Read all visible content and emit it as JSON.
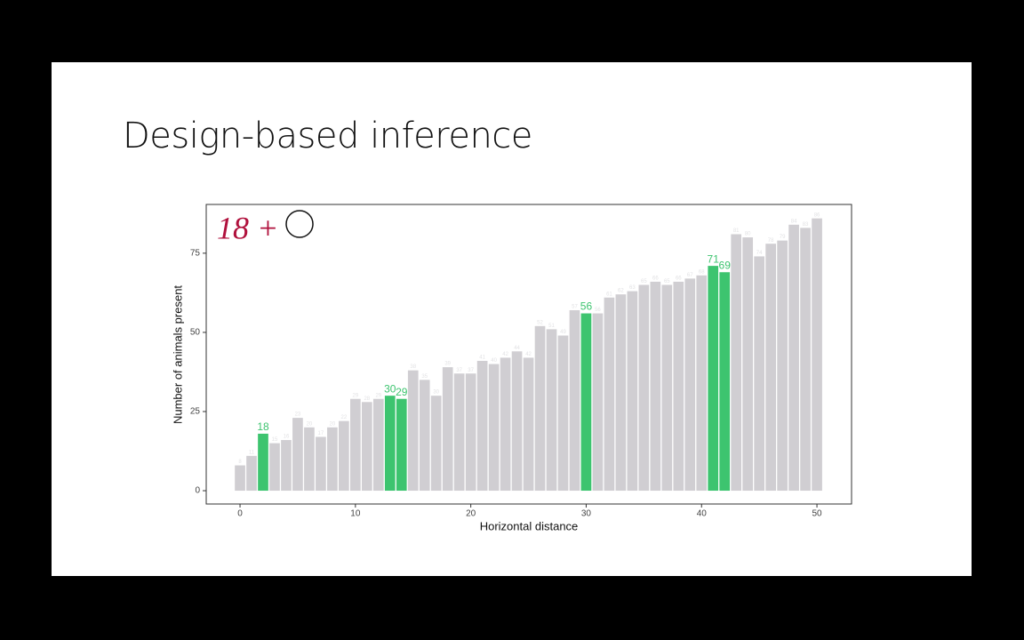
{
  "title": "Design-based inference",
  "chart_data": {
    "type": "bar",
    "x": [
      0,
      1,
      2,
      3,
      4,
      5,
      6,
      7,
      8,
      9,
      10,
      11,
      12,
      13,
      14,
      15,
      16,
      17,
      18,
      19,
      20,
      21,
      22,
      23,
      24,
      25,
      26,
      27,
      28,
      29,
      30,
      31,
      32,
      33,
      34,
      35,
      36,
      37,
      38,
      39,
      40,
      41,
      42,
      43,
      44,
      45,
      46,
      47,
      48,
      49,
      50
    ],
    "values": [
      8,
      11,
      18,
      15,
      16,
      23,
      20,
      17,
      20,
      22,
      29,
      28,
      29,
      30,
      29,
      38,
      35,
      30,
      39,
      37,
      37,
      41,
      40,
      42,
      44,
      42,
      52,
      51,
      49,
      57,
      56,
      56,
      61,
      62,
      63,
      65,
      66,
      65,
      66,
      67,
      68,
      71,
      69,
      81,
      80,
      74,
      78,
      79,
      84,
      83,
      86
    ],
    "colors": [
      "#d0ced2",
      "#d0ced2",
      "#3dc46f",
      "#d0ced2",
      "#d0ced2",
      "#d0ced2",
      "#d0ced2",
      "#d0ced2",
      "#d0ced2",
      "#d0ced2",
      "#d0ced2",
      "#d0ced2",
      "#d0ced2",
      "#3dc46f",
      "#3dc46f",
      "#d0ced2",
      "#d0ced2",
      "#d0ced2",
      "#d0ced2",
      "#d0ced2",
      "#d0ced2",
      "#d0ced2",
      "#d0ced2",
      "#d0ced2",
      "#d0ced2",
      "#d0ced2",
      "#d0ced2",
      "#d0ced2",
      "#d0ced2",
      "#d0ced2",
      "#3dc46f",
      "#d0ced2",
      "#d0ced2",
      "#d0ced2",
      "#d0ced2",
      "#d0ced2",
      "#d0ced2",
      "#d0ced2",
      "#d0ced2",
      "#d0ced2",
      "#d0ced2",
      "#3dc46f",
      "#3dc46f",
      "#d0ced2",
      "#d0ced2",
      "#d0ced2",
      "#d0ced2",
      "#d0ced2",
      "#d0ced2",
      "#d0ced2",
      "#d0ced2"
    ],
    "xlabel": "Horizontal distance",
    "ylabel": "Number of animals present",
    "xlim": [
      -2.93,
      53
    ],
    "xticks": [
      0,
      10,
      20,
      30,
      40,
      50
    ],
    "ylim": [
      -4.2,
      90.4
    ],
    "yticks": [
      0,
      25,
      50,
      75
    ],
    "grid": false,
    "annotation": "18 +"
  }
}
